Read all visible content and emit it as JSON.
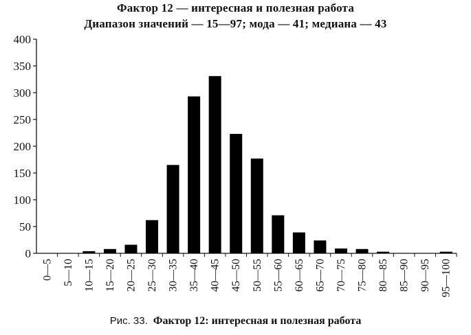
{
  "chart_data": {
    "type": "bar",
    "title": "Фактор 12 — интересная и полезная работа",
    "subtitle": "Диапазон значений — 15—97; мода — 41; медиана — 43",
    "categories": [
      "0—5",
      "5—10",
      "10—15",
      "15—20",
      "20—25",
      "25—30",
      "30—35",
      "35—40",
      "40—45",
      "45—50",
      "50—55",
      "55—60",
      "60—65",
      "65—70",
      "70—75",
      "75—80",
      "80—85",
      "85—90",
      "90—95",
      "95—100"
    ],
    "values": [
      0,
      0,
      4,
      8,
      16,
      62,
      165,
      293,
      331,
      223,
      177,
      71,
      39,
      24,
      9,
      8,
      3,
      0,
      0,
      3
    ],
    "ylim": [
      0,
      400
    ],
    "yticks": [
      0,
      50,
      100,
      150,
      200,
      250,
      300,
      350,
      400
    ],
    "xlabel": "",
    "ylabel": "",
    "bar_color": "#000000",
    "grid": false,
    "legend": "none"
  },
  "caption": {
    "prefix": "Рис. 33.",
    "text": "Фактор 12:  интересная и полезная работа"
  }
}
